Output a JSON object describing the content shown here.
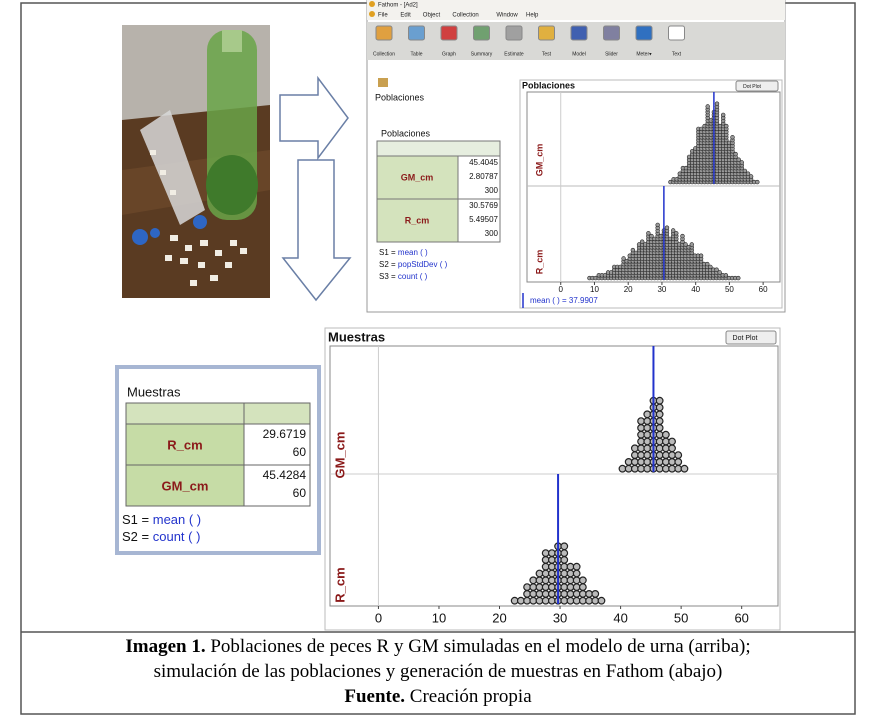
{
  "fathom_top": {
    "window_title": "Fathom - [Ad2]",
    "menu": [
      "File",
      "Edit",
      "Object",
      "Collection",
      "Window",
      "Help"
    ],
    "toolbar": [
      "Collection",
      "Table",
      "Graph",
      "Summary",
      "Estimate",
      "Test",
      "Model",
      "Slider",
      "Meter▾",
      "Text"
    ],
    "collection_label": "Poblaciones",
    "table": {
      "title": "Poblaciones",
      "rows": [
        {
          "name": "GM_cm",
          "values": [
            45.4045,
            2.80787,
            300
          ]
        },
        {
          "name": "R_cm",
          "values": [
            30.5769,
            5.49507,
            300
          ]
        }
      ],
      "formulas": [
        {
          "name": "S1 =",
          "func": "mean ( )"
        },
        {
          "name": "S2 =",
          "func": "popStdDev ( )"
        },
        {
          "name": "S3 =",
          "func": "count ( )"
        }
      ]
    },
    "graph": {
      "title": "Poblaciones",
      "menu": "Dot Plot",
      "y_labels": [
        "GM_cm",
        "R_cm"
      ],
      "xlim": [
        -10,
        65
      ],
      "xticks": [
        0,
        10,
        20,
        30,
        40,
        50,
        60
      ],
      "legend": "mean ( ) = 37.9907"
    }
  },
  "fathom_bottom": {
    "table": {
      "title": "Muestras",
      "rows": [
        {
          "name": "R_cm",
          "values": [
            29.6719,
            60
          ]
        },
        {
          "name": "GM_cm",
          "values": [
            45.4284,
            60
          ]
        }
      ],
      "formulas": [
        {
          "name": "S1 =",
          "func": "mean ( )"
        },
        {
          "name": "S2 =",
          "func": "count ( )"
        }
      ]
    },
    "graph": {
      "title": "Muestras",
      "menu": "Dot Plot",
      "y_labels": [
        "GM_cm",
        "R_cm"
      ],
      "xlim": [
        -8,
        66
      ],
      "xticks": [
        0,
        10,
        20,
        30,
        40,
        50,
        60
      ]
    }
  },
  "caption": {
    "label": "Imagen 1.",
    "lines": [
      "Poblaciones de peces R y GM simuladas en el modelo de urna (arriba);",
      "simulación de las poblaciones y generación de muestras en Fathom (abajo)"
    ],
    "source_label": "Fuente.",
    "source": "Creación propia"
  }
}
